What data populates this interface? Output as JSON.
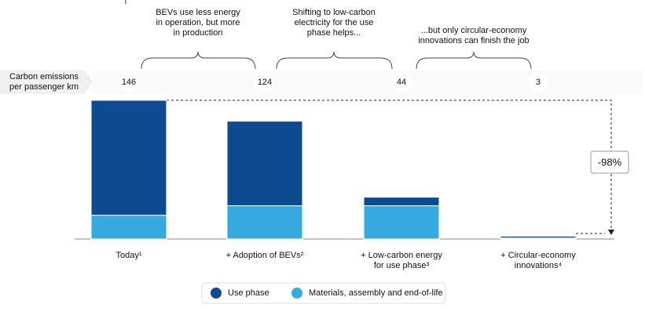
{
  "chart_data": {
    "type": "stacked-bar",
    "row_label": "Carbon emissions\nper passenger km",
    "categories": [
      "Today¹",
      "+ Adoption of BEVs²",
      "+ Low-carbon energy\nfor use phase³",
      "+ Circular-economy\ninnovations⁴"
    ],
    "totals": [
      146,
      124,
      44,
      3
    ],
    "series": [
      {
        "name": "Use phase",
        "color": "#0d4a8f",
        "values": [
          121,
          89,
          9,
          2
        ]
      },
      {
        "name": "Materials, assembly and end-of-life",
        "color": "#36a9e1",
        "values": [
          25,
          35,
          35,
          1
        ]
      }
    ],
    "annotations": [
      "BEVs use less energy\nin operation, but more\nin production",
      "Shifting to low-carbon\nelectricity for the use\nphase helps...",
      "...but only circular-economy\ninnovations can finish the job"
    ],
    "change_label": "-98%"
  }
}
